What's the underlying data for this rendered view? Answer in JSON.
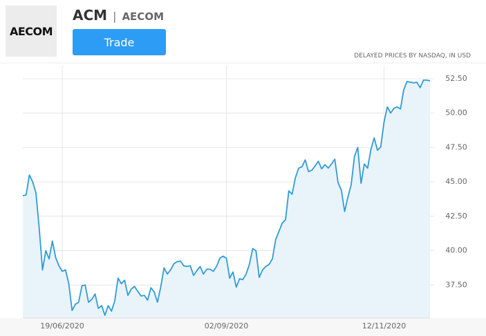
{
  "header": {
    "logo": "AECOM",
    "ticker": "ACM",
    "separator": "|",
    "company": "AECOM",
    "button": "Trade",
    "note": "DELAYED PRICES BY NASDAQ, IN USD"
  },
  "chart_data": {
    "type": "area",
    "color": "#2e9bd6",
    "fill": "#e9f3fa",
    "grid": true,
    "categories": [
      null,
      null,
      null,
      null,
      null,
      null,
      null,
      null,
      null,
      null,
      null,
      null,
      "19/06/2020",
      null,
      null,
      null,
      null,
      null,
      null,
      null,
      null,
      null,
      null,
      null,
      null,
      null,
      null,
      null,
      null,
      null,
      null,
      null,
      null,
      null,
      null,
      null,
      null,
      null,
      null,
      null,
      null,
      null,
      null,
      null,
      null,
      null,
      null,
      null,
      null,
      null,
      null,
      null,
      null,
      null,
      null,
      null,
      null,
      null,
      null,
      null,
      null,
      null,
      "02/09/2020",
      null,
      null,
      null,
      null,
      null,
      null,
      null,
      null,
      null,
      null,
      null,
      null,
      null,
      null,
      null,
      null,
      null,
      null,
      null,
      null,
      null,
      null,
      null,
      null,
      null,
      null,
      null,
      null,
      null,
      null,
      null,
      null,
      null,
      null,
      null,
      null,
      null,
      null,
      null,
      null,
      null,
      null,
      null,
      null,
      null,
      null,
      null,
      "12/11/2020",
      null,
      null,
      null,
      null,
      null,
      null,
      null,
      null,
      null,
      null,
      null,
      null,
      null,
      null
    ],
    "values": [
      44.0,
      44.05,
      45.5,
      45.0,
      44.2,
      41.6,
      38.6,
      40.0,
      39.4,
      40.7,
      39.5,
      38.9,
      38.5,
      38.6,
      37.6,
      35.65,
      36.1,
      36.25,
      37.45,
      37.5,
      36.25,
      36.45,
      36.85,
      35.8,
      36.0,
      35.3,
      36.0,
      35.6,
      36.35,
      38.0,
      37.6,
      37.85,
      36.75,
      37.2,
      37.4,
      37.05,
      36.7,
      36.75,
      36.4,
      37.3,
      37.0,
      36.25,
      37.35,
      38.75,
      38.3,
      38.6,
      39.05,
      39.2,
      39.25,
      38.9,
      38.85,
      38.9,
      38.2,
      38.55,
      38.85,
      38.3,
      38.65,
      38.65,
      38.5,
      38.85,
      39.45,
      39.6,
      39.45,
      38.0,
      38.45,
      37.35,
      37.95,
      37.9,
      38.3,
      39.0,
      40.15,
      40.0,
      38.05,
      38.6,
      38.85,
      39.0,
      39.4,
      40.8,
      41.4,
      42.0,
      42.25,
      44.35,
      44.1,
      45.3,
      46.0,
      46.1,
      46.6,
      45.75,
      45.85,
      46.15,
      46.5,
      45.95,
      46.25,
      46.0,
      46.3,
      46.65,
      44.95,
      44.4,
      42.85,
      43.9,
      44.8,
      46.85,
      47.5,
      44.9,
      46.3,
      46.0,
      47.35,
      48.2,
      47.3,
      47.55,
      49.35,
      50.45,
      50.0,
      50.35,
      50.45,
      50.3,
      51.7,
      52.3,
      52.25,
      52.2,
      52.25,
      51.85,
      52.4,
      52.4,
      52.35
    ],
    "ylim": [
      35.1,
      53.45
    ],
    "yticks": [
      {
        "value": 37.5,
        "label": "37.50"
      },
      {
        "value": 40,
        "label": "40.00"
      },
      {
        "value": 42.5,
        "label": "42.50"
      },
      {
        "value": 45,
        "label": "45.00"
      },
      {
        "value": 47.5,
        "label": "47.50"
      },
      {
        "value": 50,
        "label": "50.00"
      },
      {
        "value": 52.5,
        "label": "52.50"
      }
    ]
  }
}
